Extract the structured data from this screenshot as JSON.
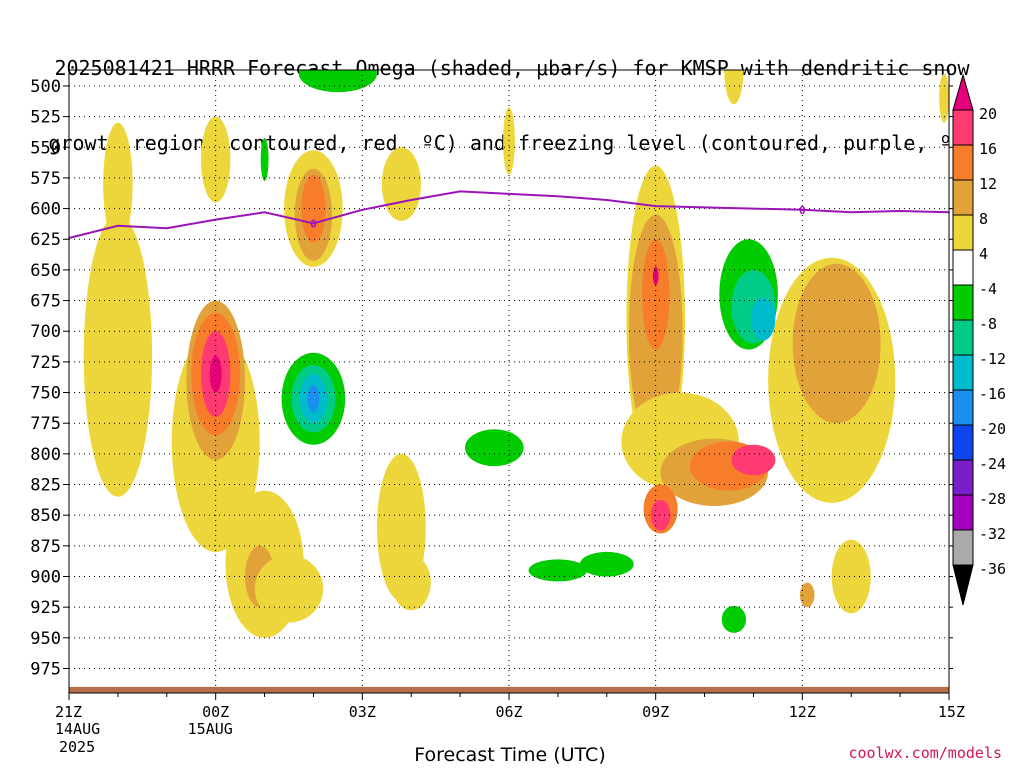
{
  "title": {
    "line1": "2025081421 HRRR Forecast Omega (shaded, μbar/s) for KMSP with dendritic snow",
    "line2": "growth region (contoured, red, ºC) and freezing level (contoured, purple, ºC)"
  },
  "credit": "coolwx.com/models",
  "chart_data": {
    "type": "heatmap",
    "xlabel": "Forecast Time (UTC)",
    "ylabel": "",
    "x_ticks": [
      {
        "h": 0,
        "label": "21Z",
        "sub1": "14AUG",
        "sub2": "2025"
      },
      {
        "h": 3,
        "label": "00Z",
        "sub1": "15AUG",
        "sub2": ""
      },
      {
        "h": 6,
        "label": "03Z",
        "sub1": "",
        "sub2": ""
      },
      {
        "h": 9,
        "label": "06Z",
        "sub1": "",
        "sub2": ""
      },
      {
        "h": 12,
        "label": "09Z",
        "sub1": "",
        "sub2": ""
      },
      {
        "h": 15,
        "label": "12Z",
        "sub1": "",
        "sub2": ""
      },
      {
        "h": 18,
        "label": "15Z",
        "sub1": "",
        "sub2": ""
      }
    ],
    "xlim": [
      0,
      18
    ],
    "y_ticks": [
      500,
      525,
      550,
      575,
      600,
      625,
      650,
      675,
      700,
      725,
      750,
      775,
      800,
      825,
      850,
      875,
      900,
      925,
      950,
      975
    ],
    "ylim": [
      487,
      995
    ],
    "grid": true,
    "colorbar": {
      "labels": [
        "20",
        "16",
        "12",
        "8",
        "4",
        "-4",
        "-8",
        "-12",
        "-16",
        "-20",
        "-24",
        "-28",
        "-32",
        "-36"
      ],
      "colors": [
        "#ff3a73",
        "#f87d2b",
        "#e2a23a",
        "#ecd63b",
        "#ffffff",
        "#00cc00",
        "#00cc88",
        "#00bbcc",
        "#1a8ff0",
        "#1045ee",
        "#7a1fc8",
        "#a300bf",
        "#aaaaaa"
      ],
      "top_color": "#e6007a",
      "bottom_color": "#000000"
    },
    "freezing_level": {
      "color": "#9a14b8",
      "hours": [
        0,
        1,
        2,
        3,
        4,
        5,
        6,
        7,
        8,
        9,
        10,
        11,
        12,
        13,
        14,
        15,
        16,
        17,
        18
      ],
      "pressure": [
        624,
        614,
        616,
        609,
        603,
        612,
        601,
        593,
        586,
        588,
        590,
        593,
        598,
        599,
        600,
        601,
        603,
        602,
        603
      ],
      "labels": [
        {
          "h": 5,
          "p": 612,
          "text": "0"
        },
        {
          "h": 15,
          "p": 601,
          "text": "0"
        }
      ]
    },
    "omega_features": [
      {
        "h": 1.0,
        "p": 720,
        "rh": 0.7,
        "rp": 230,
        "value": 6
      },
      {
        "h": 1.0,
        "p": 580,
        "rh": 0.3,
        "rp": 100,
        "value": 6
      },
      {
        "h": 3.0,
        "p": 790,
        "rh": 0.9,
        "rp": 180,
        "value": 6
      },
      {
        "h": 3.0,
        "p": 740,
        "rh": 0.6,
        "rp": 130,
        "value": 10
      },
      {
        "h": 3.0,
        "p": 735,
        "rh": 0.5,
        "rp": 100,
        "value": 14
      },
      {
        "h": 3.0,
        "p": 735,
        "rh": 0.3,
        "rp": 70,
        "value": 18
      },
      {
        "h": 3.0,
        "p": 735,
        "rh": 0.12,
        "rp": 30,
        "value": 22
      },
      {
        "h": 3.0,
        "p": 560,
        "rh": 0.3,
        "rp": 70,
        "value": 6
      },
      {
        "h": 4.0,
        "p": 890,
        "rh": 0.8,
        "rp": 120,
        "value": 6
      },
      {
        "h": 3.9,
        "p": 900,
        "rh": 0.3,
        "rp": 50,
        "value": 10
      },
      {
        "h": 5.0,
        "p": 600,
        "rh": 0.6,
        "rp": 95,
        "value": 6
      },
      {
        "h": 5.0,
        "p": 605,
        "rh": 0.38,
        "rp": 75,
        "value": 10
      },
      {
        "h": 5.0,
        "p": 600,
        "rh": 0.25,
        "rp": 55,
        "value": 14
      },
      {
        "h": 4.5,
        "p": 910,
        "rh": 0.7,
        "rp": 55,
        "value": 6
      },
      {
        "h": 5.5,
        "p": 490,
        "rh": 0.8,
        "rp": 30,
        "value": -6
      },
      {
        "h": 5.0,
        "p": 755,
        "rh": 0.65,
        "rp": 75,
        "value": -6
      },
      {
        "h": 5.0,
        "p": 755,
        "rh": 0.45,
        "rp": 55,
        "value": -10
      },
      {
        "h": 5.0,
        "p": 755,
        "rh": 0.28,
        "rp": 40,
        "value": -14
      },
      {
        "h": 5.0,
        "p": 755,
        "rh": 0.12,
        "rp": 22,
        "value": -18
      },
      {
        "h": 4.0,
        "p": 560,
        "rh": 0.08,
        "rp": 35,
        "value": -6
      },
      {
        "h": 6.8,
        "p": 580,
        "rh": 0.4,
        "rp": 60,
        "value": 6
      },
      {
        "h": 6.8,
        "p": 860,
        "rh": 0.5,
        "rp": 120,
        "value": 6
      },
      {
        "h": 7.0,
        "p": 905,
        "rh": 0.4,
        "rp": 45,
        "value": 6
      },
      {
        "h": 9.0,
        "p": 545,
        "rh": 0.12,
        "rp": 55,
        "value": 6
      },
      {
        "h": 8.7,
        "p": 795,
        "rh": 0.6,
        "rp": 30,
        "value": -6
      },
      {
        "h": 10.0,
        "p": 895,
        "rh": 0.6,
        "rp": 18,
        "value": -6
      },
      {
        "h": 12.0,
        "p": 690,
        "rh": 0.6,
        "rp": 250,
        "value": 6
      },
      {
        "h": 12.0,
        "p": 700,
        "rh": 0.55,
        "rp": 190,
        "value": 10
      },
      {
        "h": 12.0,
        "p": 670,
        "rh": 0.28,
        "rp": 90,
        "value": 14
      },
      {
        "h": 12.0,
        "p": 655,
        "rh": 0.06,
        "rp": 15,
        "value": 20
      },
      {
        "h": 12.5,
        "p": 790,
        "rh": 1.2,
        "rp": 80,
        "value": 6
      },
      {
        "h": 13.2,
        "p": 815,
        "rh": 1.1,
        "rp": 55,
        "value": 10
      },
      {
        "h": 13.5,
        "p": 810,
        "rh": 0.8,
        "rp": 40,
        "value": 14
      },
      {
        "h": 14.0,
        "p": 805,
        "rh": 0.45,
        "rp": 25,
        "value": 18
      },
      {
        "h": 12.1,
        "p": 845,
        "rh": 0.35,
        "rp": 40,
        "value": 14
      },
      {
        "h": 12.1,
        "p": 850,
        "rh": 0.2,
        "rp": 25,
        "value": 18
      },
      {
        "h": 13.6,
        "p": 485,
        "rh": 0.2,
        "rp": 60,
        "value": 6
      },
      {
        "h": 15.6,
        "p": 740,
        "rh": 1.3,
        "rp": 200,
        "value": 6
      },
      {
        "h": 15.7,
        "p": 710,
        "rh": 0.9,
        "rp": 130,
        "value": 10
      },
      {
        "h": 16.0,
        "p": 900,
        "rh": 0.4,
        "rp": 60,
        "value": 6
      },
      {
        "h": 15.1,
        "p": 915,
        "rh": 0.15,
        "rp": 20,
        "value": 10
      },
      {
        "h": 13.9,
        "p": 670,
        "rh": 0.6,
        "rp": 90,
        "value": -6
      },
      {
        "h": 14.0,
        "p": 680,
        "rh": 0.45,
        "rp": 60,
        "value": -10
      },
      {
        "h": 14.2,
        "p": 690,
        "rh": 0.25,
        "rp": 35,
        "value": -14
      },
      {
        "h": 13.6,
        "p": 935,
        "rh": 0.25,
        "rp": 22,
        "value": -6
      },
      {
        "h": 11.0,
        "p": 890,
        "rh": 0.55,
        "rp": 20,
        "value": -6
      },
      {
        "h": 17.9,
        "p": 510,
        "rh": 0.1,
        "rp": 40,
        "value": 6
      }
    ],
    "ground": {
      "color": "#b5704a",
      "p": 990
    }
  }
}
